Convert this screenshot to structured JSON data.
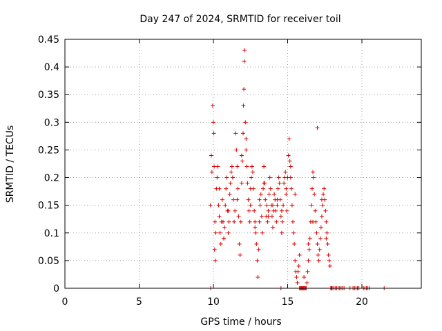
{
  "chart_data": {
    "type": "scatter",
    "title": "Day 247 of 2024, SRMTID for receiver toil",
    "xlabel": "GPS time / hours",
    "ylabel": "SRMTID / TECUs",
    "xlim": [
      0,
      24
    ],
    "ylim": [
      0,
      0.45
    ],
    "xticks": [
      0,
      5,
      10,
      15,
      20
    ],
    "yticks": [
      0,
      0.05,
      0.1,
      0.15,
      0.2,
      0.25,
      0.3,
      0.35,
      0.4,
      0.45
    ],
    "xtick_labels": [
      "0",
      "5",
      "10",
      "15",
      "20"
    ],
    "ytick_labels": [
      "0",
      "0.05",
      "0.1",
      "0.15",
      "0.2",
      "0.25",
      "0.3",
      "0.35",
      "0.4",
      "0.45"
    ],
    "grid": true,
    "marker": "+",
    "marker_color": "#dd0000",
    "series": [
      {
        "x": [
          9.82,
          9.86,
          9.9,
          9.95,
          10.0,
          10.03,
          10.05,
          10.08,
          10.12,
          10.16,
          10.2,
          10.25,
          10.3,
          10.35,
          10.4,
          10.45,
          10.5,
          10.55,
          10.6,
          10.65,
          10.7,
          10.75,
          10.8,
          10.85,
          10.9,
          10.95,
          11.0,
          11.05,
          11.1,
          11.15,
          11.2,
          11.25,
          11.3,
          11.35,
          11.4,
          11.45,
          11.5,
          11.55,
          11.6,
          11.65,
          11.7,
          11.75,
          11.8,
          11.85,
          11.9,
          11.95,
          12.0,
          12.02,
          12.05,
          12.07,
          12.1,
          12.15,
          12.2,
          12.25,
          12.3,
          12.35,
          12.4,
          12.45,
          12.5,
          12.55,
          12.6,
          12.65,
          12.7,
          12.75,
          12.8,
          12.85,
          12.9,
          12.95,
          13.0,
          13.05,
          13.1,
          13.15,
          13.2,
          13.25,
          13.3,
          13.35,
          13.4,
          13.45,
          13.5,
          13.55,
          13.6,
          13.65,
          13.7,
          13.75,
          13.8,
          13.85,
          13.9,
          13.95,
          14.0,
          14.05,
          14.1,
          14.15,
          14.2,
          14.25,
          14.3,
          14.35,
          14.4,
          14.45,
          14.5,
          14.55,
          14.6,
          14.65,
          14.7,
          14.75,
          14.8,
          14.85,
          14.9,
          14.95,
          15.0,
          15.05,
          15.1,
          15.15,
          15.2,
          15.25,
          15.3,
          15.35,
          15.4,
          15.45,
          15.5,
          15.55,
          15.6,
          15.65,
          15.7,
          15.75,
          15.8,
          15.85,
          15.9,
          15.95,
          16.0,
          16.05,
          16.1,
          16.15,
          16.2,
          16.25,
          16.3,
          16.35,
          16.4,
          16.45,
          16.5,
          16.55,
          16.6,
          16.65,
          16.7,
          16.75,
          16.8,
          16.85,
          16.9,
          16.95,
          17.0,
          17.05,
          17.1,
          17.15,
          17.2,
          17.25,
          17.3,
          17.35,
          17.4,
          17.45,
          17.5,
          17.55,
          17.6,
          17.65,
          17.7,
          17.75,
          17.8,
          17.85,
          17.9,
          17.95,
          18.0,
          18.1,
          18.2,
          18.3,
          18.4,
          18.5,
          18.6,
          18.7,
          18.8,
          19.2,
          19.4,
          19.5,
          19.6,
          19.7,
          19.8,
          20.1,
          20.2,
          20.3,
          20.4,
          20.5,
          21.5,
          14.55,
          9.8,
          10.1,
          10.4,
          10.7,
          11.0,
          11.3,
          11.6,
          11.9,
          12.2,
          12.5,
          12.8,
          13.1,
          13.4,
          13.7,
          14.0,
          14.3,
          14.6,
          14.9,
          15.2,
          15.5,
          15.8,
          16.1,
          16.4,
          16.7,
          17.0,
          17.3,
          17.6
        ],
        "y": [
          0.0,
          0.24,
          0.21,
          0.33,
          0.3,
          0.28,
          0.22,
          0.07,
          0.05,
          0.1,
          0.18,
          0.2,
          0.22,
          0.15,
          0.13,
          0.1,
          0.08,
          0.12,
          0.16,
          0.12,
          0.09,
          0.11,
          0.15,
          0.18,
          0.2,
          0.14,
          0.1,
          0.12,
          0.17,
          0.19,
          0.21,
          0.22,
          0.2,
          0.16,
          0.12,
          0.14,
          0.28,
          0.25,
          0.22,
          0.18,
          0.13,
          0.08,
          0.06,
          0.12,
          0.19,
          0.23,
          0.28,
          0.33,
          0.36,
          0.41,
          0.43,
          0.3,
          0.25,
          0.22,
          0.19,
          0.16,
          0.14,
          0.12,
          0.15,
          0.2,
          0.22,
          0.21,
          0.18,
          0.14,
          0.12,
          0.1,
          0.08,
          0.05,
          0.02,
          0.07,
          0.12,
          0.15,
          0.17,
          0.13,
          0.1,
          0.18,
          0.22,
          0.19,
          0.16,
          0.13,
          0.15,
          0.12,
          0.14,
          0.17,
          0.2,
          0.18,
          0.15,
          0.13,
          0.11,
          0.14,
          0.17,
          0.16,
          0.14,
          0.12,
          0.15,
          0.18,
          0.2,
          0.19,
          0.16,
          0.13,
          0.1,
          0.12,
          0.15,
          0.19,
          0.2,
          0.21,
          0.17,
          0.14,
          0.2,
          0.24,
          0.27,
          0.23,
          0.2,
          0.18,
          0.15,
          0.12,
          0.1,
          0.08,
          0.05,
          0.03,
          0.02,
          0.01,
          0.03,
          0.04,
          0.0,
          0.0,
          0.0,
          0.0,
          0.0,
          0.0,
          0.0,
          0.0,
          0.0,
          0.0,
          0.01,
          0.03,
          0.05,
          0.07,
          0.09,
          0.12,
          0.15,
          0.18,
          0.21,
          0.2,
          0.17,
          0.14,
          0.12,
          0.1,
          0.08,
          0.06,
          0.05,
          0.07,
          0.09,
          0.11,
          0.13,
          0.15,
          0.17,
          0.18,
          0.16,
          0.14,
          0.12,
          0.1,
          0.08,
          0.06,
          0.05,
          0.04,
          0.0,
          0.0,
          0.0,
          0.0,
          0.0,
          0.0,
          0.0,
          0.0,
          0.0,
          0.0,
          0.0,
          0.0,
          0.0,
          0.0,
          0.0,
          0.0,
          0.0,
          0.0,
          0.0,
          0.0,
          0.0,
          0.0,
          0.0,
          0.0,
          0.15,
          0.12,
          0.18,
          0.09,
          0.14,
          0.2,
          0.16,
          0.24,
          0.27,
          0.18,
          0.11,
          0.16,
          0.19,
          0.13,
          0.15,
          0.16,
          0.14,
          0.18,
          0.22,
          0.17,
          0.06,
          0.02,
          0.08,
          0.12,
          0.29,
          0.16,
          0.09
        ]
      }
    ]
  }
}
